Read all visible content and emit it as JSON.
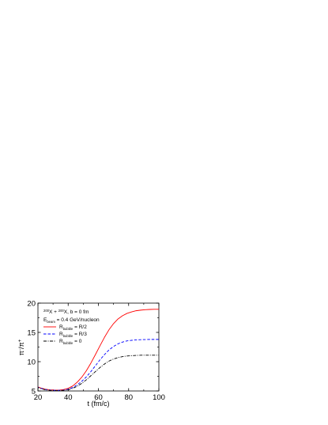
{
  "chart_data": {
    "type": "line",
    "xlabel": "t (fm/c)",
    "ylabel": {
      "base1": "π",
      "sup1": "-",
      "sep": "/π",
      "sup2": "+"
    },
    "xlim": [
      20,
      100
    ],
    "ylim": [
      5,
      20
    ],
    "xticks": [
      20,
      40,
      60,
      80,
      100
    ],
    "yticks": [
      5,
      10,
      15,
      20
    ],
    "grid": false,
    "legend_position": "upper-left",
    "annotations": [
      {
        "id": "reaction",
        "parts": [
          {
            "t": "sup",
            "v": "200"
          },
          {
            "t": "txt",
            "v": "X + "
          },
          {
            "t": "sup",
            "v": "200"
          },
          {
            "t": "txt",
            "v": "X, b = 0 fm"
          }
        ]
      },
      {
        "id": "energy",
        "parts": [
          {
            "t": "txt",
            "v": "E"
          },
          {
            "t": "sub",
            "v": "beam"
          },
          {
            "t": "txt",
            "v": " = 0.4 GeV/nucleon"
          }
        ]
      }
    ],
    "series": [
      {
        "name": "R = R/2",
        "legend": {
          "base": "R",
          "sub": "bubble",
          "rest": " = R/2"
        },
        "color": "#ff0000",
        "style": "solid",
        "x": [
          19,
          22,
          25,
          28,
          31,
          34,
          37,
          40,
          43,
          46,
          49,
          52,
          55,
          58,
          61,
          64,
          67,
          70,
          73,
          76,
          79,
          82,
          85,
          88,
          91,
          94,
          97,
          100
        ],
        "y": [
          5.8,
          5.5,
          5.3,
          5.2,
          5.15,
          5.15,
          5.25,
          5.45,
          5.85,
          6.5,
          7.35,
          8.45,
          9.75,
          11.2,
          12.7,
          14.15,
          15.45,
          16.5,
          17.3,
          17.85,
          18.25,
          18.5,
          18.7,
          18.8,
          18.88,
          18.92,
          18.95,
          18.95
        ]
      },
      {
        "name": "R = R/3",
        "legend": {
          "base": "R",
          "sub": "bubble",
          "rest": " = R/3"
        },
        "color": "#0000ff",
        "style": "dashed",
        "x": [
          19,
          22,
          25,
          28,
          31,
          34,
          37,
          40,
          43,
          46,
          49,
          52,
          55,
          58,
          61,
          64,
          67,
          70,
          73,
          76,
          79,
          82,
          85,
          88,
          91,
          94,
          97,
          100
        ],
        "y": [
          5.75,
          5.45,
          5.25,
          5.15,
          5.1,
          5.1,
          5.15,
          5.3,
          5.6,
          6.05,
          6.65,
          7.4,
          8.3,
          9.3,
          10.3,
          11.2,
          12.0,
          12.6,
          13.05,
          13.35,
          13.55,
          13.65,
          13.72,
          13.76,
          13.78,
          13.8,
          13.8,
          13.8
        ]
      },
      {
        "name": "R = 0",
        "legend": {
          "base": "R",
          "sub": "bubble",
          "rest": " = 0"
        },
        "color": "#000000",
        "style": "dashdot",
        "x": [
          19,
          22,
          25,
          28,
          31,
          34,
          37,
          40,
          43,
          46,
          49,
          52,
          55,
          58,
          61,
          64,
          67,
          70,
          73,
          76,
          79,
          82,
          85,
          88,
          91,
          94,
          97,
          100
        ],
        "y": [
          5.7,
          5.4,
          5.2,
          5.1,
          5.05,
          5.05,
          5.1,
          5.2,
          5.45,
          5.8,
          6.3,
          6.9,
          7.6,
          8.3,
          9.0,
          9.6,
          10.1,
          10.45,
          10.7,
          10.87,
          10.97,
          11.03,
          11.07,
          11.1,
          11.1,
          11.1,
          11.1,
          11.1
        ]
      }
    ]
  }
}
